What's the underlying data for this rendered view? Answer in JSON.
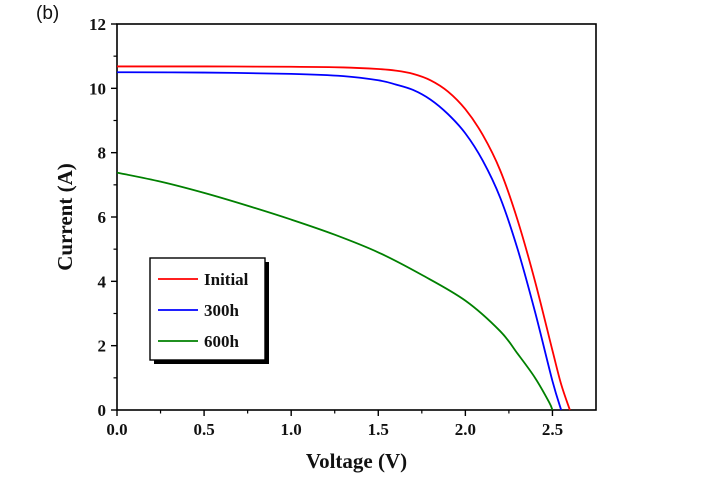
{
  "panel_label": "(b)",
  "chart_data": {
    "type": "line",
    "title": "",
    "xlabel": "Voltage (V)",
    "ylabel": "Current (A)",
    "xlim": [
      0,
      2.75
    ],
    "ylim": [
      0,
      12
    ],
    "x_ticks": [
      0.0,
      0.5,
      1.0,
      1.5,
      2.0,
      2.5
    ],
    "x_tick_labels": [
      "0.0",
      "0.5",
      "1.0",
      "1.5",
      "2.0",
      "2.5"
    ],
    "y_ticks": [
      0,
      2,
      4,
      6,
      8,
      10,
      12
    ],
    "y_tick_labels": [
      "0",
      "2",
      "4",
      "6",
      "8",
      "10",
      "12"
    ],
    "grid": false,
    "legend_position": "lower-left",
    "series": [
      {
        "name": "Initial",
        "color": "#ff0000",
        "points": [
          [
            0,
            10.68
          ],
          [
            0.5,
            10.68
          ],
          [
            1.0,
            10.67
          ],
          [
            1.3,
            10.65
          ],
          [
            1.5,
            10.6
          ],
          [
            1.6,
            10.55
          ],
          [
            1.7,
            10.45
          ],
          [
            1.8,
            10.25
          ],
          [
            1.9,
            9.9
          ],
          [
            2.0,
            9.35
          ],
          [
            2.1,
            8.55
          ],
          [
            2.2,
            7.45
          ],
          [
            2.3,
            5.9
          ],
          [
            2.4,
            4.0
          ],
          [
            2.5,
            1.85
          ],
          [
            2.55,
            0.8
          ],
          [
            2.6,
            0
          ]
        ]
      },
      {
        "name": "300h",
        "color": "#0000ff",
        "points": [
          [
            0,
            10.5
          ],
          [
            0.5,
            10.49
          ],
          [
            1.0,
            10.45
          ],
          [
            1.3,
            10.38
          ],
          [
            1.5,
            10.25
          ],
          [
            1.6,
            10.12
          ],
          [
            1.7,
            9.95
          ],
          [
            1.8,
            9.65
          ],
          [
            1.9,
            9.2
          ],
          [
            2.0,
            8.6
          ],
          [
            2.1,
            7.75
          ],
          [
            2.2,
            6.6
          ],
          [
            2.3,
            5.0
          ],
          [
            2.4,
            3.05
          ],
          [
            2.5,
            0.9
          ],
          [
            2.55,
            0
          ]
        ]
      },
      {
        "name": "600h",
        "color": "#008000",
        "points": [
          [
            0,
            7.38
          ],
          [
            0.25,
            7.1
          ],
          [
            0.5,
            6.75
          ],
          [
            0.75,
            6.35
          ],
          [
            1.0,
            5.92
          ],
          [
            1.25,
            5.45
          ],
          [
            1.5,
            4.9
          ],
          [
            1.75,
            4.2
          ],
          [
            2.0,
            3.4
          ],
          [
            2.2,
            2.45
          ],
          [
            2.3,
            1.75
          ],
          [
            2.4,
            1.0
          ],
          [
            2.48,
            0.25
          ],
          [
            2.5,
            0
          ]
        ]
      }
    ]
  }
}
